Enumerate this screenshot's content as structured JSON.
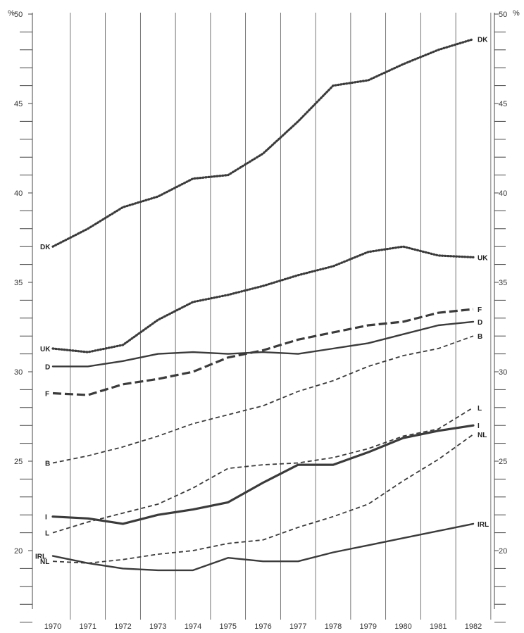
{
  "chart_data": {
    "type": "line",
    "title": "",
    "xlabel": "",
    "ylabel": "",
    "y_unit_left": "%",
    "y_unit_right": "%",
    "ylim": [
      16,
      50
    ],
    "y_tick_labels_left": [
      "50",
      "45",
      "40",
      "35",
      "30",
      "25",
      "20"
    ],
    "y_tick_labels_right": [
      "50",
      "45",
      "40",
      "35",
      "30",
      "25",
      "20"
    ],
    "grid": "vertical",
    "categories": [
      "1970",
      "1971",
      "1972",
      "1973",
      "1974",
      "1975",
      "1976",
      "1977",
      "1978",
      "1979",
      "1980",
      "1981",
      "1982"
    ],
    "series": [
      {
        "name": "DK",
        "style": "dotted",
        "values": [
          37.0,
          38.0,
          39.2,
          39.8,
          40.8,
          41.0,
          42.2,
          44.0,
          46.0,
          46.3,
          47.2,
          48.0,
          48.6
        ]
      },
      {
        "name": "UK",
        "style": "dotted",
        "values": [
          31.3,
          31.1,
          31.5,
          32.9,
          33.9,
          34.3,
          34.8,
          35.4,
          35.9,
          36.7,
          37.0,
          36.5,
          36.4
        ]
      },
      {
        "name": "F",
        "style": "dashed-heavy",
        "values": [
          28.8,
          28.7,
          29.3,
          29.6,
          30.0,
          30.8,
          31.2,
          31.8,
          32.2,
          32.6,
          32.8,
          33.3,
          33.5
        ]
      },
      {
        "name": "D",
        "style": "solid",
        "values": [
          30.3,
          30.3,
          30.6,
          31.0,
          31.1,
          31.0,
          31.1,
          31.0,
          31.3,
          31.6,
          32.1,
          32.6,
          32.8
        ]
      },
      {
        "name": "B",
        "style": "dashed",
        "values": [
          24.9,
          25.3,
          25.8,
          26.4,
          27.1,
          27.6,
          28.1,
          28.9,
          29.5,
          30.3,
          30.9,
          31.3,
          32.0
        ]
      },
      {
        "name": "L",
        "style": "dashed",
        "values": [
          21.0,
          21.6,
          22.1,
          22.6,
          23.5,
          24.6,
          24.8,
          24.9,
          25.2,
          25.7,
          26.4,
          26.8,
          28.0
        ]
      },
      {
        "name": "I",
        "style": "solid-heavy",
        "values": [
          21.9,
          21.8,
          21.5,
          22.0,
          22.3,
          22.7,
          23.8,
          24.8,
          24.8,
          25.5,
          26.3,
          26.7,
          27.0
        ]
      },
      {
        "name": "NL",
        "style": "dashed",
        "values": [
          19.4,
          19.3,
          19.5,
          19.8,
          20.0,
          20.4,
          20.6,
          21.3,
          21.9,
          22.6,
          23.9,
          25.1,
          26.5
        ]
      },
      {
        "name": "IRL",
        "style": "solid",
        "values": [
          19.7,
          19.3,
          19.0,
          18.9,
          18.9,
          19.6,
          19.4,
          19.4,
          19.9,
          20.3,
          20.7,
          21.1,
          21.5
        ]
      }
    ]
  }
}
